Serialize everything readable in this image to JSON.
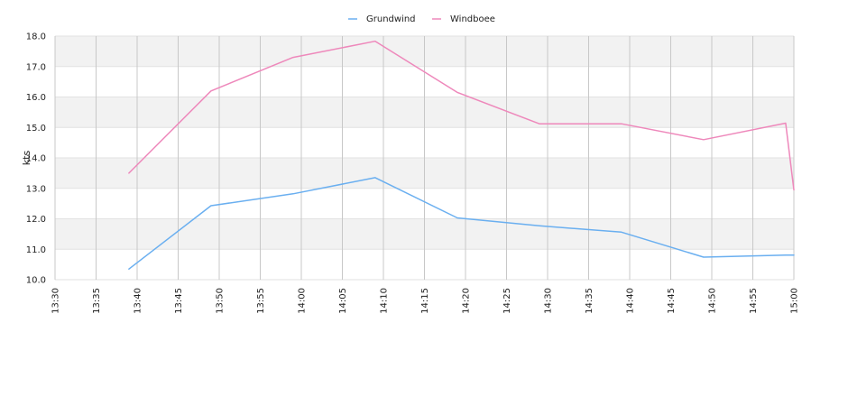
{
  "chart_data": {
    "type": "line",
    "ylabel": "kts",
    "xlabel": "",
    "title": "",
    "x_ticks": [
      "13:30",
      "13:35",
      "13:40",
      "13:45",
      "13:50",
      "13:55",
      "14:00",
      "14:05",
      "14:10",
      "14:15",
      "14:20",
      "14:25",
      "14:30",
      "14:35",
      "14:40",
      "14:45",
      "14:50",
      "14:55",
      "15:00"
    ],
    "xlim": [
      "13:30",
      "15:00"
    ],
    "y_ticks": [
      "10.0",
      "11.0",
      "12.0",
      "13.0",
      "14.0",
      "15.0",
      "16.0",
      "17.0",
      "18.0"
    ],
    "ylim": [
      10,
      18
    ],
    "grid": true,
    "legend_position": "top-center",
    "series": [
      {
        "name": "Grundwind",
        "color": "#6aaff0",
        "points": [
          {
            "x": "13:39",
            "y": 10.35
          },
          {
            "x": "13:49",
            "y": 12.43
          },
          {
            "x": "13:59",
            "y": 12.82
          },
          {
            "x": "14:09",
            "y": 13.35
          },
          {
            "x": "14:19",
            "y": 12.03
          },
          {
            "x": "14:29",
            "y": 11.77
          },
          {
            "x": "14:39",
            "y": 11.56
          },
          {
            "x": "14:49",
            "y": 10.74
          },
          {
            "x": "14:59",
            "y": 10.81
          },
          {
            "x": "15:00",
            "y": 10.81
          }
        ]
      },
      {
        "name": "Windboee",
        "color": "#ee88bb",
        "points": [
          {
            "x": "13:39",
            "y": 13.5
          },
          {
            "x": "13:49",
            "y": 16.2
          },
          {
            "x": "13:59",
            "y": 17.3
          },
          {
            "x": "14:09",
            "y": 17.83
          },
          {
            "x": "14:19",
            "y": 16.15
          },
          {
            "x": "14:29",
            "y": 15.12
          },
          {
            "x": "14:39",
            "y": 15.12
          },
          {
            "x": "14:49",
            "y": 14.6
          },
          {
            "x": "14:59",
            "y": 15.14
          },
          {
            "x": "15:00",
            "y": 12.95
          }
        ]
      }
    ]
  }
}
